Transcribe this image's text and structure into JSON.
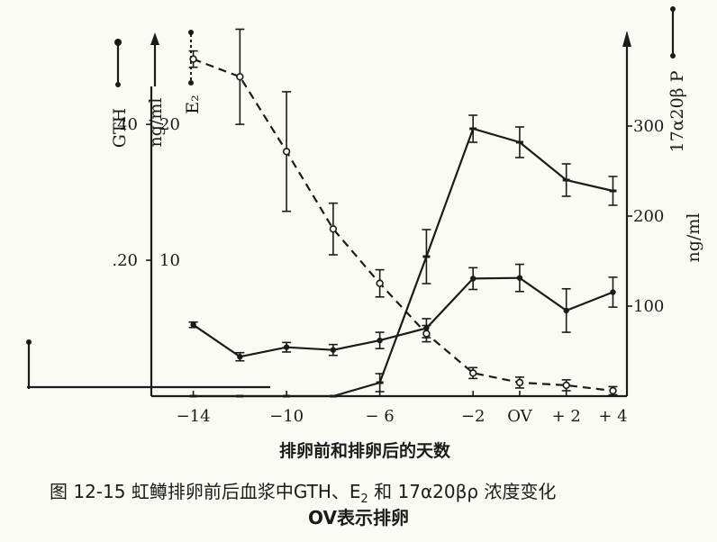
{
  "chart_data": {
    "type": "line",
    "x_ticks": [
      "−14",
      "−10",
      "− 6",
      "−2",
      "OV",
      "+ 2",
      "+ 4"
    ],
    "x_tick_values": [
      -14,
      -10,
      -6,
      -2,
      0,
      2,
      4
    ],
    "xlabel": "排卵前和排卵后的天数",
    "xlim": [
      -15.8,
      4.6
    ],
    "left_axis_outer": {
      "label": "GTH",
      "ticks": [
        "40",
        ".20"
      ],
      "tick_values": [
        40,
        20
      ],
      "ylim": [
        0,
        53
      ]
    },
    "left_axis_inner": {
      "label": "ng/ml",
      "ticks": [
        "20",
        "10"
      ],
      "tick_values": [
        20,
        10
      ],
      "ylim": [
        0,
        26.5
      ]
    },
    "e2_label": "E₂",
    "right_axis": {
      "label": "17α20β P",
      "unit_label": "ng/ml",
      "ticks": [
        "300",
        "200",
        "100"
      ],
      "tick_values": [
        300,
        200,
        100
      ],
      "ylim": [
        0,
        400
      ]
    },
    "series": [
      {
        "name": "GTH",
        "axis": "left_outer",
        "style": "solid-dot",
        "x": [
          -14,
          -12,
          -10,
          -8,
          -6,
          -4,
          -2,
          0,
          2,
          4
        ],
        "y": [
          10.5,
          5.8,
          7.2,
          6.8,
          8.2,
          10.0,
          17.3,
          17.4,
          12.6,
          15.3
        ],
        "err": [
          0.4,
          0.6,
          0.7,
          0.8,
          1.2,
          1.4,
          1.6,
          2.0,
          3.2,
          2.2
        ]
      },
      {
        "name": "E₂",
        "axis": "left_inner",
        "style": "dashed-circle",
        "x": [
          -14,
          -12,
          -10,
          -8,
          -6,
          -4,
          -2,
          0,
          2,
          4
        ],
        "y": [
          24.8,
          23.5,
          18.0,
          12.3,
          8.3,
          4.6,
          1.7,
          1.0,
          0.8,
          0.4
        ],
        "err": [
          0.6,
          3.5,
          4.4,
          1.9,
          1.0,
          0.6,
          0.4,
          0.4,
          0.4,
          0.3
        ]
      },
      {
        "name": "17α20β P",
        "axis": "right",
        "style": "solid-bar",
        "x": [
          -14,
          -12,
          -10,
          -8,
          -6,
          -4,
          -2,
          0,
          2,
          4
        ],
        "y": [
          0,
          0,
          0,
          0,
          15,
          155,
          297,
          282,
          240,
          228
        ],
        "err": [
          0,
          0,
          0,
          0,
          10,
          30,
          15,
          17,
          18,
          16
        ]
      }
    ],
    "grid": false
  },
  "caption": {
    "prefix": "图  12-15   虹鳟排卵前后血浆中",
    "mid1": "GTH、E",
    "sub1": "2",
    "mid2": " 和 ",
    "mid3": "17α20βρ",
    "tail": " 浓度变化",
    "line2": "OV表示排卵"
  }
}
